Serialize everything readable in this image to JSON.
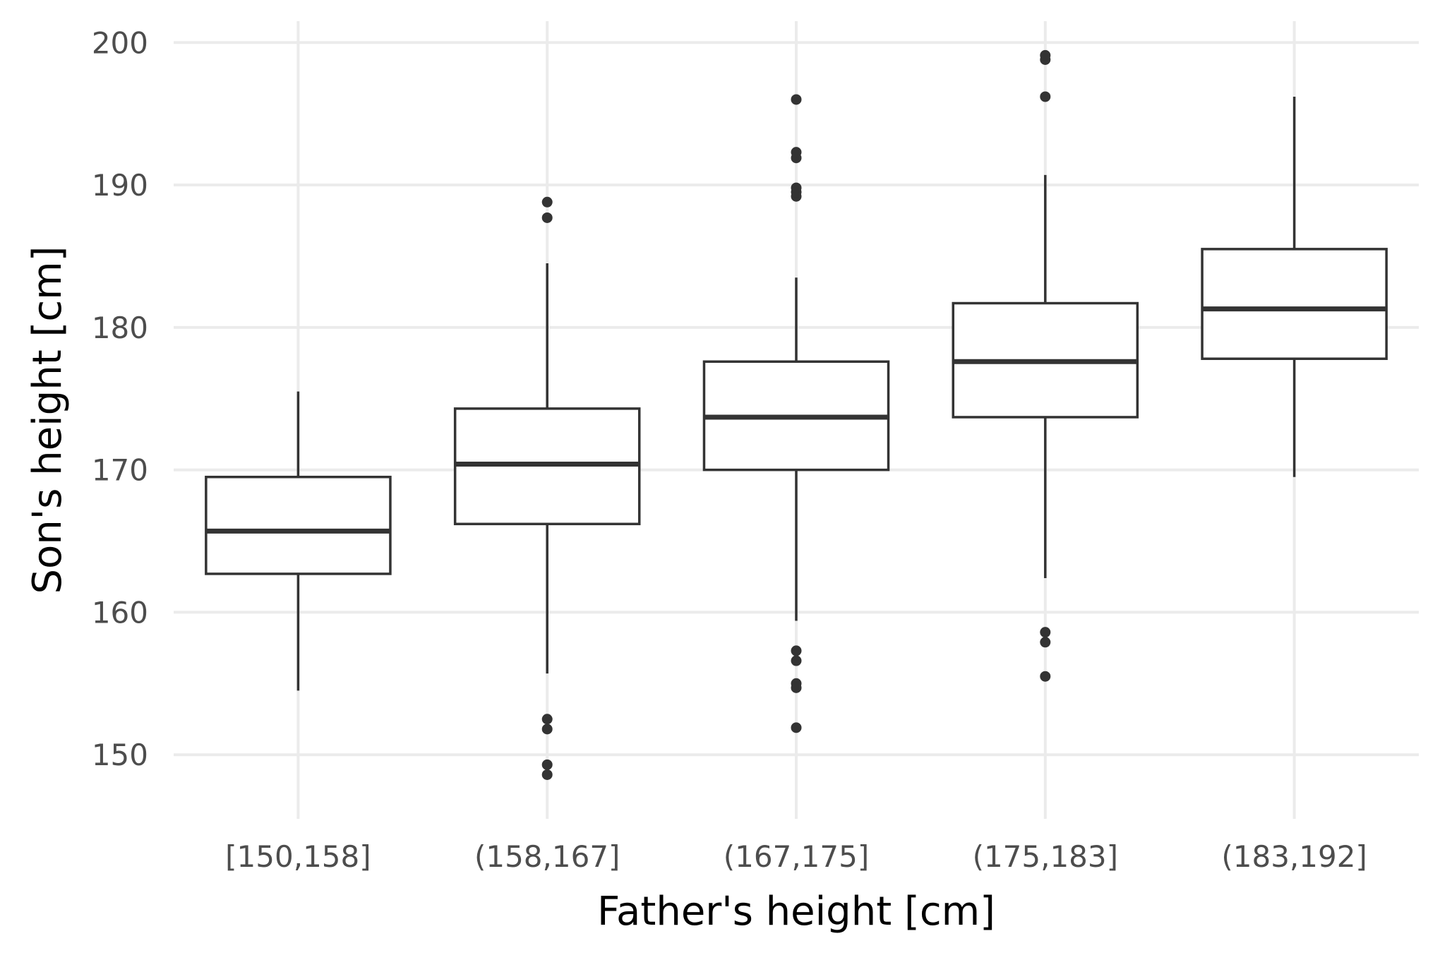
{
  "chart_data": {
    "type": "boxplot",
    "xlabel": "Father's height [cm]",
    "ylabel": "Son's height [cm]",
    "categories": [
      "[150,158]",
      "(158,167]",
      "(167,175]",
      "(175,183]",
      "(183,192]"
    ],
    "ylim": [
      145.5,
      201.5
    ],
    "yticks": [
      150,
      160,
      170,
      180,
      190,
      200
    ],
    "grid": true,
    "legend": "none",
    "boxes": [
      {
        "category": "[150,158]",
        "lower_whisker": 154.5,
        "q1": 162.7,
        "median": 165.7,
        "q3": 169.5,
        "upper_whisker": 175.5,
        "outliers": []
      },
      {
        "category": "(158,167]",
        "lower_whisker": 155.7,
        "q1": 166.2,
        "median": 170.4,
        "q3": 174.3,
        "upper_whisker": 184.5,
        "outliers": [
          152.5,
          151.8,
          149.3,
          148.6,
          187.7,
          188.8
        ]
      },
      {
        "category": "(167,175]",
        "lower_whisker": 159.4,
        "q1": 170.0,
        "median": 173.7,
        "q3": 177.6,
        "upper_whisker": 183.5,
        "outliers": [
          157.3,
          156.6,
          155.0,
          154.7,
          151.9,
          189.2,
          189.5,
          189.8,
          191.9,
          192.3,
          196.0
        ]
      },
      {
        "category": "(175,183]",
        "lower_whisker": 162.4,
        "q1": 173.7,
        "median": 177.6,
        "q3": 181.7,
        "upper_whisker": 190.7,
        "outliers": [
          158.6,
          157.9,
          155.5,
          196.2,
          198.8,
          199.1
        ]
      },
      {
        "category": "(183,192]",
        "lower_whisker": 169.5,
        "q1": 177.8,
        "median": 181.3,
        "q3": 185.5,
        "upper_whisker": 196.2,
        "outliers": []
      }
    ]
  }
}
